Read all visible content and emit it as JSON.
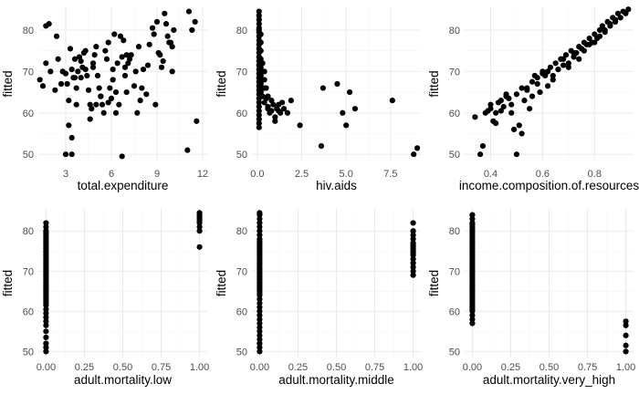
{
  "chart_data": [
    {
      "type": "scatter",
      "xlabel": "total.expenditure",
      "ylabel": "fitted",
      "xlim": [
        1.2,
        12.3
      ],
      "ylim": [
        48.5,
        85.5
      ],
      "xticks": [
        3,
        6,
        9,
        12
      ],
      "yticks": [
        50,
        60,
        70,
        80
      ],
      "grid": true,
      "x": [
        1.3,
        1.5,
        1.7,
        1.9,
        1.7,
        2.0,
        2.3,
        2.5,
        2.7,
        3.0,
        3.1,
        3.2,
        3.3,
        3.4,
        3.5,
        3.6,
        3.7,
        3.7,
        3.8,
        3.9,
        4.0,
        4.1,
        4.2,
        4.3,
        4.3,
        4.4,
        4.5,
        4.6,
        4.7,
        4.8,
        4.9,
        5.0,
        5.1,
        5.2,
        5.3,
        5.4,
        5.5,
        5.6,
        5.7,
        5.8,
        5.9,
        6.0,
        6.1,
        6.2,
        6.3,
        6.4,
        6.5,
        6.6,
        6.7,
        6.8,
        6.9,
        7.0,
        7.1,
        7.3,
        7.5,
        7.7,
        7.9,
        8.1,
        8.3,
        8.5,
        8.7,
        8.9,
        9.1,
        9.3,
        9.5,
        9.7,
        9.9,
        10.0,
        10.1,
        9.0,
        8.8,
        9.6,
        9.8,
        10.0,
        3.0,
        3.2,
        3.4,
        6.7,
        11.0,
        11.1,
        11.3,
        11.5,
        11.6,
        3.4,
        4.6,
        5.8,
        7.2,
        4.0,
        6.1,
        8.0,
        2.8,
        5.3,
        7.6,
        9.2,
        6.3,
        7.8,
        5.0,
        2.4,
        3.6,
        4.8,
        6.9,
        8.4,
        9.4,
        7.0
      ],
      "y": [
        68.0,
        66.5,
        81.0,
        81.5,
        72.0,
        70.0,
        65.5,
        73.0,
        67.0,
        69.5,
        67.0,
        63.0,
        75.5,
        70.5,
        68.5,
        73.0,
        66.0,
        62.0,
        70.0,
        73.5,
        72.5,
        71.0,
        74.5,
        75.0,
        70.5,
        69.0,
        65.5,
        62.0,
        61.0,
        72.0,
        74.0,
        76.0,
        69.0,
        66.0,
        64.0,
        62.0,
        60.0,
        75.0,
        73.0,
        77.0,
        66.0,
        63.5,
        68.0,
        79.0,
        65.0,
        72.0,
        62.0,
        78.5,
        73.5,
        77.5,
        71.0,
        65.0,
        72.0,
        74.0,
        66.5,
        60.0,
        63.0,
        70.5,
        64.5,
        76.5,
        80.5,
        62.0,
        74.5,
        71.0,
        84.0,
        78.5,
        77.0,
        76.0,
        80.0,
        82.0,
        79.0,
        81.5,
        77.0,
        70.0,
        50.0,
        57.0,
        50.0,
        49.5,
        51.0,
        84.5,
        80.0,
        82.0,
        58.0,
        54.0,
        58.5,
        62.5,
        73.0,
        68.5,
        70.5,
        66.0,
        70.0,
        64.0,
        70.0,
        74.0,
        60.0,
        76.0,
        62.0,
        78.5,
        68.5,
        71.0,
        69.0,
        71.5,
        72.5,
        74.0
      ]
    },
    {
      "type": "scatter",
      "xlabel": "hiv.aids",
      "ylabel": "fitted",
      "xlim": [
        -0.3,
        9.2
      ],
      "ylim": [
        48.5,
        85.5
      ],
      "xticks": [
        0.0,
        2.5,
        5.0,
        7.5
      ],
      "xtick_labels": [
        "0.0",
        "2.5",
        "5.0",
        "7.5"
      ],
      "yticks": [
        50,
        60,
        70,
        80
      ],
      "grid": true,
      "x": [
        0.1,
        0.1,
        0.1,
        0.1,
        0.1,
        0.1,
        0.1,
        0.1,
        0.1,
        0.1,
        0.1,
        0.1,
        0.1,
        0.1,
        0.1,
        0.1,
        0.1,
        0.1,
        0.1,
        0.1,
        0.1,
        0.1,
        0.1,
        0.1,
        0.1,
        0.1,
        0.1,
        0.1,
        0.1,
        0.1,
        0.2,
        0.2,
        0.2,
        0.2,
        0.2,
        0.2,
        0.2,
        0.2,
        0.3,
        0.3,
        0.3,
        0.3,
        0.3,
        0.4,
        0.4,
        0.4,
        0.5,
        0.5,
        0.6,
        0.6,
        0.7,
        0.8,
        0.9,
        1.0,
        1.1,
        1.2,
        1.3,
        1.4,
        1.5,
        1.7,
        1.9,
        2.4,
        3.6,
        3.7,
        4.5,
        4.8,
        5.0,
        5.2,
        5.5,
        7.6,
        8.8,
        9.0,
        0.2,
        0.4,
        0.6,
        0.8,
        1.0,
        1.2
      ],
      "y": [
        84.5,
        83.5,
        82.5,
        81.5,
        80.5,
        79.5,
        78.5,
        77.5,
        76.5,
        75.5,
        74.5,
        73.5,
        72.5,
        71.5,
        70.5,
        69.5,
        68.5,
        67.5,
        66.5,
        65.5,
        64.5,
        63.5,
        62.5,
        61.5,
        60.5,
        59.5,
        58.5,
        57.5,
        56.5,
        80.0,
        79.0,
        77.0,
        75.0,
        73.0,
        71.0,
        69.0,
        67.0,
        65.0,
        72.0,
        70.0,
        68.0,
        66.0,
        64.0,
        70.0,
        68.0,
        66.0,
        63.5,
        66.0,
        64.0,
        61.0,
        60.0,
        63.0,
        62.0,
        58.0,
        61.0,
        62.0,
        60.0,
        62.5,
        61.0,
        60.0,
        63.0,
        57.0,
        52.0,
        66.0,
        67.0,
        60.0,
        57.0,
        65.0,
        61.0,
        63.0,
        50.0,
        51.5,
        65.5,
        62.5,
        61.5,
        60.5,
        59.0,
        60.5
      ]
    },
    {
      "type": "scatter",
      "xlabel": "income.composition.of.resources",
      "ylabel": "fitted",
      "xlim": [
        0.3,
        0.95
      ],
      "ylim": [
        48.5,
        85.5
      ],
      "xticks": [
        0.4,
        0.6,
        0.8
      ],
      "xtick_labels": [
        "0.4",
        "0.6",
        "0.8"
      ],
      "yticks": [
        50,
        60,
        70,
        80
      ],
      "grid": true,
      "x": [
        0.34,
        0.36,
        0.37,
        0.39,
        0.4,
        0.41,
        0.42,
        0.43,
        0.44,
        0.45,
        0.46,
        0.47,
        0.48,
        0.49,
        0.5,
        0.51,
        0.52,
        0.53,
        0.54,
        0.55,
        0.56,
        0.57,
        0.58,
        0.59,
        0.6,
        0.61,
        0.62,
        0.63,
        0.64,
        0.65,
        0.66,
        0.67,
        0.68,
        0.69,
        0.7,
        0.71,
        0.72,
        0.73,
        0.74,
        0.75,
        0.76,
        0.77,
        0.78,
        0.79,
        0.8,
        0.81,
        0.82,
        0.83,
        0.84,
        0.85,
        0.86,
        0.87,
        0.88,
        0.89,
        0.9,
        0.91,
        0.92,
        0.93,
        0.38,
        0.4,
        0.42,
        0.44,
        0.46,
        0.48,
        0.5,
        0.52,
        0.54,
        0.56,
        0.58,
        0.6,
        0.62,
        0.64,
        0.66,
        0.68,
        0.7,
        0.72,
        0.74,
        0.76,
        0.78,
        0.8,
        0.82,
        0.84,
        0.86,
        0.88
      ],
      "y": [
        59.0,
        50.0,
        52.0,
        60.5,
        61.0,
        58.0,
        60.0,
        62.5,
        63.0,
        61.5,
        64.5,
        63.5,
        60.0,
        56.0,
        50.0,
        57.0,
        55.0,
        63.0,
        66.0,
        61.0,
        64.0,
        69.0,
        68.5,
        65.0,
        70.0,
        69.0,
        66.5,
        71.0,
        69.0,
        72.0,
        70.5,
        73.0,
        71.5,
        74.0,
        72.0,
        75.0,
        73.5,
        74.5,
        76.0,
        75.5,
        77.0,
        76.5,
        78.0,
        77.0,
        79.0,
        78.0,
        80.0,
        81.0,
        80.0,
        82.0,
        81.5,
        83.0,
        82.5,
        84.0,
        83.0,
        84.5,
        84.0,
        85.0,
        60.0,
        62.0,
        57.5,
        60.5,
        64.0,
        62.0,
        64.5,
        66.0,
        65.5,
        67.5,
        67.0,
        69.5,
        70.0,
        68.0,
        70.5,
        73.0,
        71.0,
        74.5,
        73.0,
        75.0,
        76.5,
        77.0,
        78.5,
        79.5,
        81.0,
        82.0
      ]
    },
    {
      "type": "scatter",
      "xlabel": "adult.mortality.low",
      "ylabel": "fitted",
      "xlim": [
        -0.05,
        1.05
      ],
      "ylim": [
        48.5,
        85.5
      ],
      "xticks": [
        0.0,
        0.25,
        0.5,
        0.75,
        1.0
      ],
      "xtick_labels": [
        "0.00",
        "0.25",
        "0.50",
        "0.75",
        "1.00"
      ],
      "yticks": [
        50,
        60,
        70,
        80
      ],
      "grid": true,
      "x": [
        0,
        0,
        0,
        0,
        0,
        0,
        0,
        0,
        0,
        0,
        0,
        0,
        0,
        0,
        0,
        0,
        0,
        0,
        0,
        0,
        0,
        0,
        0,
        0,
        0,
        0,
        0,
        0,
        0,
        0,
        0,
        0,
        0,
        0,
        0,
        0,
        0,
        0,
        0,
        0,
        0,
        0,
        0,
        0,
        0,
        0,
        0,
        0,
        0,
        0,
        1,
        1,
        1,
        1,
        1,
        1,
        1,
        1,
        1
      ],
      "y": [
        50.0,
        51.0,
        52.0,
        53.5,
        55.0,
        56.5,
        57.5,
        58.5,
        59.5,
        60.5,
        61.5,
        62.0,
        62.5,
        63.0,
        63.5,
        64.0,
        64.5,
        65.0,
        65.5,
        66.0,
        66.5,
        67.0,
        67.5,
        68.0,
        68.5,
        69.0,
        69.5,
        70.0,
        70.5,
        71.0,
        71.5,
        72.0,
        72.5,
        73.0,
        73.5,
        74.0,
        74.5,
        75.0,
        75.5,
        76.0,
        76.5,
        77.0,
        77.5,
        78.0,
        78.5,
        79.0,
        79.5,
        80.0,
        81.0,
        82.0,
        76.0,
        80.0,
        81.0,
        82.0,
        82.5,
        83.0,
        83.5,
        84.0,
        84.5
      ]
    },
    {
      "type": "scatter",
      "xlabel": "adult.mortality.middle",
      "ylabel": "fitted",
      "xlim": [
        -0.05,
        1.05
      ],
      "ylim": [
        48.5,
        85.5
      ],
      "xticks": [
        0.0,
        0.25,
        0.5,
        0.75,
        1.0
      ],
      "xtick_labels": [
        "0.00",
        "0.25",
        "0.50",
        "0.75",
        "1.00"
      ],
      "yticks": [
        50,
        60,
        70,
        80
      ],
      "grid": true,
      "x": [
        0,
        0,
        0,
        0,
        0,
        0,
        0,
        0,
        0,
        0,
        0,
        0,
        0,
        0,
        0,
        0,
        0,
        0,
        0,
        0,
        0,
        0,
        0,
        0,
        0,
        0,
        0,
        0,
        0,
        0,
        0,
        0,
        0,
        0,
        0,
        0,
        0,
        0,
        0,
        0,
        0,
        0,
        0,
        0,
        0,
        0,
        0,
        0,
        0,
        0,
        1,
        1,
        1,
        1,
        1,
        1,
        1,
        1,
        1,
        1,
        1,
        1,
        1,
        1,
        1,
        1
      ],
      "y": [
        50.0,
        51.0,
        52.0,
        53.0,
        54.0,
        55.0,
        56.0,
        57.0,
        58.0,
        59.0,
        60.0,
        61.0,
        62.0,
        63.0,
        64.0,
        64.5,
        65.0,
        65.5,
        66.0,
        66.5,
        67.0,
        67.5,
        68.0,
        68.5,
        69.0,
        69.5,
        70.0,
        70.5,
        71.0,
        71.5,
        72.0,
        72.5,
        73.0,
        73.5,
        74.0,
        74.5,
        75.0,
        75.5,
        76.0,
        76.5,
        77.0,
        77.5,
        78.0,
        79.0,
        80.0,
        81.0,
        82.0,
        83.0,
        84.0,
        84.5,
        69.0,
        70.0,
        71.0,
        72.0,
        73.0,
        74.0,
        74.5,
        75.0,
        75.5,
        76.0,
        76.5,
        77.0,
        78.0,
        79.0,
        80.0,
        82.0
      ]
    },
    {
      "type": "scatter",
      "xlabel": "adult.mortality.very_high",
      "ylabel": "fitted",
      "xlim": [
        -0.05,
        1.05
      ],
      "ylim": [
        48.5,
        85.5
      ],
      "xticks": [
        0.0,
        0.25,
        0.5,
        0.75,
        1.0
      ],
      "xtick_labels": [
        "0.00",
        "0.25",
        "0.50",
        "0.75",
        "1.00"
      ],
      "yticks": [
        50,
        60,
        70,
        80
      ],
      "grid": true,
      "x": [
        0,
        0,
        0,
        0,
        0,
        0,
        0,
        0,
        0,
        0,
        0,
        0,
        0,
        0,
        0,
        0,
        0,
        0,
        0,
        0,
        0,
        0,
        0,
        0,
        0,
        0,
        0,
        0,
        0,
        0,
        0,
        0,
        0,
        0,
        0,
        0,
        0,
        0,
        0,
        0,
        0,
        0,
        0,
        0,
        0,
        0,
        0,
        0,
        0,
        0,
        1,
        1,
        1,
        1,
        1
      ],
      "y": [
        57.0,
        58.0,
        59.0,
        60.0,
        60.5,
        61.0,
        61.5,
        62.0,
        62.5,
        63.0,
        63.5,
        64.0,
        64.5,
        65.0,
        65.5,
        66.0,
        66.5,
        67.0,
        67.5,
        68.0,
        68.5,
        69.0,
        69.5,
        70.0,
        70.5,
        71.0,
        71.5,
        72.0,
        72.5,
        73.0,
        73.5,
        74.0,
        74.5,
        75.0,
        75.5,
        76.0,
        76.5,
        77.0,
        77.5,
        78.0,
        78.5,
        79.0,
        79.5,
        80.0,
        80.5,
        81.0,
        81.5,
        82.0,
        83.0,
        84.0,
        50.0,
        51.5,
        54.0,
        56.5,
        57.5
      ]
    }
  ]
}
